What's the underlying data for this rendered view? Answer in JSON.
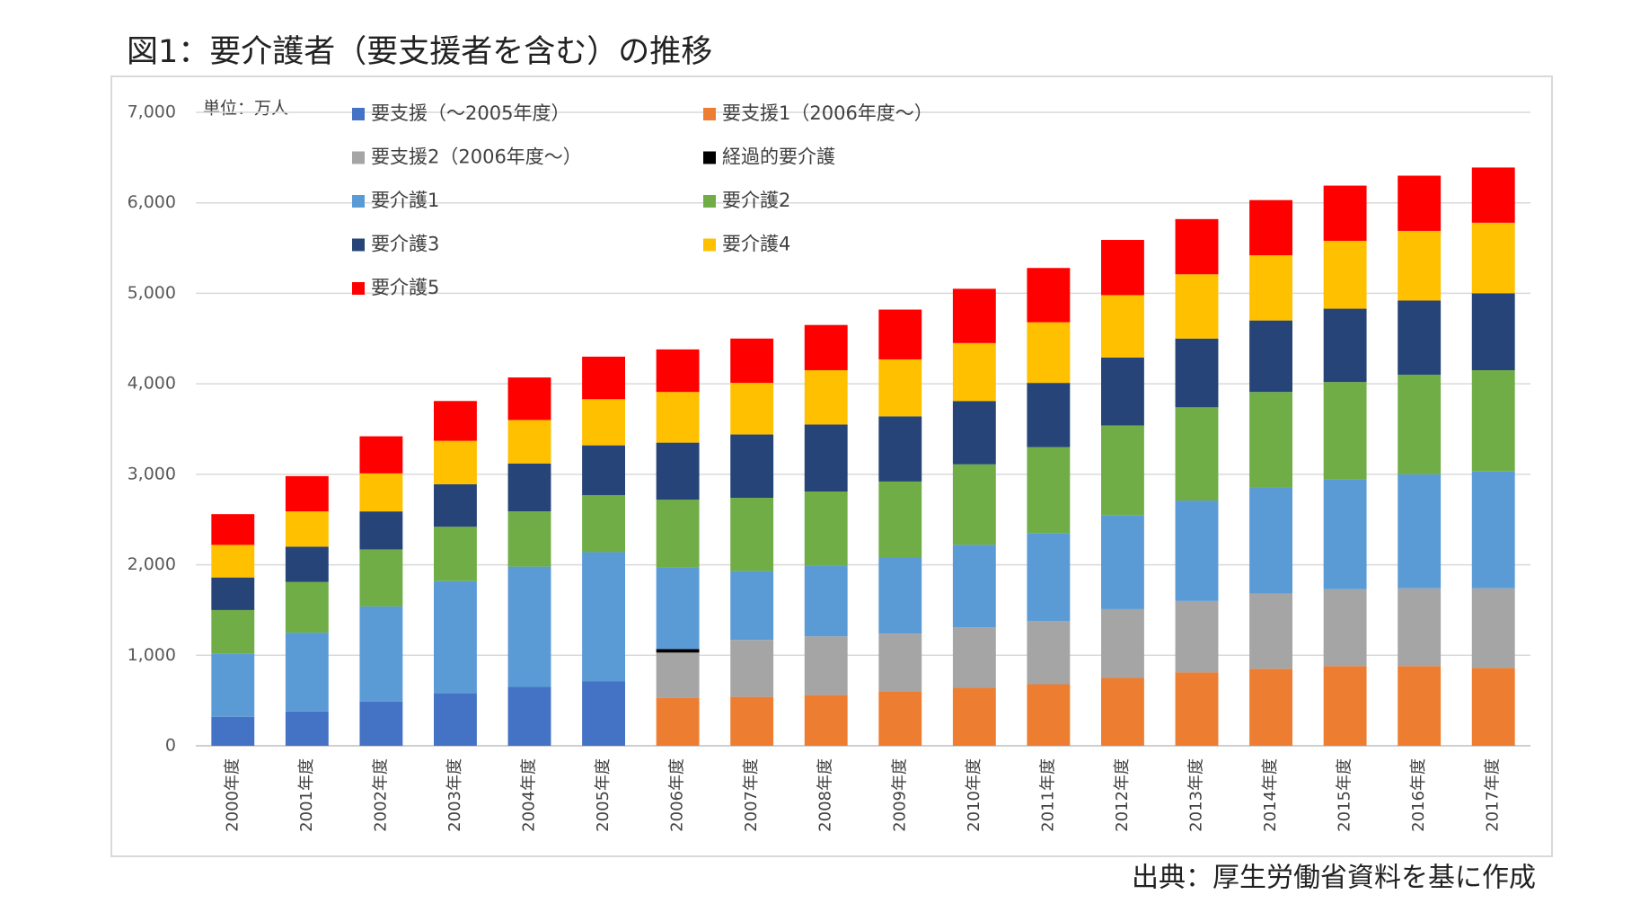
{
  "chart_data": {
    "type": "stacked-bar",
    "title": "図1：要介護者（要支援者を含む）の推移",
    "unit_label": "単位：万人",
    "source": "出典：厚生労働省資料を基に作成",
    "categories": [
      "2000年度",
      "2001年度",
      "2002年度",
      "2003年度",
      "2004年度",
      "2005年度",
      "2006年度",
      "2007年度",
      "2008年度",
      "2009年度",
      "2010年度",
      "2011年度",
      "2012年度",
      "2013年度",
      "2014年度",
      "2015年度",
      "2016年度",
      "2017年度"
    ],
    "series": [
      {
        "name": "要支援（～2005年度）",
        "color": "#4472c4",
        "values": [
          320,
          380,
          490,
          580,
          650,
          710,
          null,
          null,
          null,
          null,
          null,
          null,
          null,
          null,
          null,
          null,
          null,
          null
        ]
      },
      {
        "name": "要支援1（2006年度～）",
        "color": "#ed7d31",
        "values": [
          null,
          null,
          null,
          null,
          null,
          null,
          530,
          540,
          560,
          600,
          640,
          680,
          750,
          810,
          850,
          880,
          880,
          860
        ]
      },
      {
        "name": "要支援2（2006年度～）",
        "color": "#a5a5a5",
        "values": [
          null,
          null,
          null,
          null,
          null,
          null,
          500,
          630,
          650,
          640,
          670,
          700,
          760,
          790,
          830,
          850,
          860,
          880
        ]
      },
      {
        "name": "経過的要介護",
        "color": "#000000",
        "values": [
          null,
          null,
          null,
          null,
          null,
          null,
          40,
          null,
          null,
          null,
          null,
          null,
          null,
          null,
          null,
          null,
          null,
          null
        ]
      },
      {
        "name": "要介護1",
        "color": "#5b9bd5",
        "values": [
          700,
          870,
          1050,
          1240,
          1330,
          1430,
          900,
          760,
          780,
          840,
          910,
          970,
          1040,
          1110,
          1170,
          1210,
          1260,
          1290
        ]
      },
      {
        "name": "要介護2",
        "color": "#70ad47",
        "values": [
          480,
          560,
          630,
          600,
          610,
          630,
          750,
          810,
          820,
          840,
          890,
          950,
          990,
          1030,
          1060,
          1080,
          1100,
          1120
        ]
      },
      {
        "name": "要介護3",
        "color": "#264478",
        "values": [
          360,
          390,
          420,
          470,
          530,
          550,
          630,
          700,
          740,
          720,
          700,
          710,
          750,
          760,
          790,
          810,
          820,
          850
        ]
      },
      {
        "name": "要介護4",
        "color": "#ffc000",
        "values": [
          360,
          390,
          420,
          480,
          480,
          510,
          560,
          570,
          600,
          630,
          640,
          670,
          690,
          710,
          720,
          750,
          770,
          780
        ]
      },
      {
        "name": "要介護5",
        "color": "#ff0000",
        "values": [
          340,
          390,
          410,
          440,
          470,
          470,
          470,
          490,
          500,
          550,
          600,
          600,
          610,
          610,
          610,
          610,
          610,
          610
        ]
      }
    ],
    "ylim": [
      0,
      7000
    ],
    "yticks": [
      0,
      {
        "value": 1000,
        "label": "1,000"
      },
      {
        "value": 2000,
        "label": "2,000"
      },
      {
        "value": 3000,
        "label": "3,000"
      },
      {
        "value": 4000,
        "label": "4,000"
      },
      {
        "value": 5000,
        "label": "5,000"
      },
      {
        "value": 6000,
        "label": "6,000"
      },
      {
        "value": 7000,
        "label": "7,000"
      }
    ],
    "grid": true
  }
}
